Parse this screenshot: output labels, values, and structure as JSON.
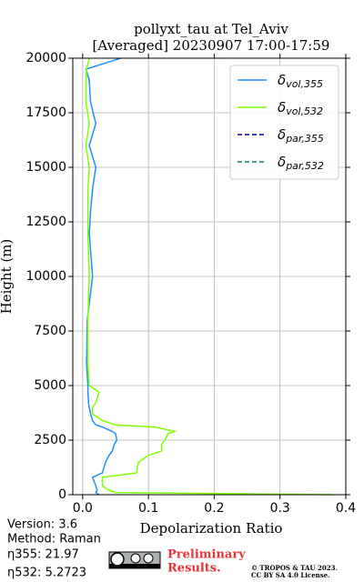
{
  "chart_data": {
    "type": "line",
    "title": "pollyxt_tau at Tel_Aviv",
    "subtitle": "[Averaged] 20230907 17:00-17:59",
    "xlabel": "Depolarization Ratio",
    "ylabel": "Height (m)",
    "y": [
      0,
      100,
      200,
      400,
      800,
      1000,
      1500,
      1800,
      2000,
      2300,
      2500,
      2800,
      2900,
      3100,
      3200,
      3400,
      3700,
      4000,
      4200,
      4700,
      5000,
      6000,
      8000,
      10000,
      12000,
      13000,
      14000,
      15000,
      16000,
      17000,
      18000,
      19000,
      19500,
      20000
    ],
    "series": [
      {
        "name": "δvol,355",
        "color": "#1e90ff",
        "dash": false,
        "values": [
          0.025,
          0.02,
          0.022,
          0.02,
          0.015,
          0.03,
          0.035,
          0.04,
          0.045,
          0.048,
          0.052,
          0.05,
          0.045,
          0.03,
          0.02,
          0.015,
          0.012,
          0.01,
          0.009,
          0.008,
          0.008,
          0.006,
          0.007,
          0.015,
          0.01,
          0.012,
          0.015,
          0.02,
          0.01,
          0.02,
          0.012,
          0.01,
          0.005,
          0.058
        ]
      },
      {
        "name": "δvol,532",
        "color": "#7fff00",
        "dash": false,
        "values": [
          0.38,
          0.05,
          0.04,
          0.03,
          0.03,
          0.082,
          0.085,
          0.1,
          0.12,
          0.12,
          0.125,
          0.13,
          0.14,
          0.11,
          0.05,
          0.03,
          0.015,
          0.015,
          0.02,
          0.025,
          0.01,
          0.008,
          0.008,
          0.01,
          0.008,
          0.008,
          0.008,
          0.01,
          0.005,
          0.01,
          0.005,
          0.005,
          0.006,
          0.01
        ]
      },
      {
        "name": "δpar,355",
        "color": "#0000aa",
        "dash": true,
        "values": [
          null,
          null,
          null,
          null,
          null,
          null,
          null,
          null,
          null,
          null,
          null,
          null,
          null,
          null,
          null,
          null,
          null,
          null,
          null,
          null,
          null,
          null,
          null,
          null,
          null,
          null,
          null,
          null,
          null,
          null,
          null,
          null,
          null,
          null
        ]
      },
      {
        "name": "δpar,532",
        "color": "#008040",
        "dash": true,
        "values": [
          null,
          null,
          null,
          null,
          null,
          null,
          null,
          null,
          null,
          null,
          null,
          null,
          null,
          null,
          null,
          null,
          null,
          null,
          null,
          null,
          null,
          null,
          null,
          null,
          null,
          null,
          null,
          null,
          null,
          null,
          null,
          null,
          null,
          null
        ]
      }
    ],
    "xlim": [
      -0.015,
      0.4
    ],
    "xticks": [
      {
        "value": 0,
        "label": "0.0"
      },
      0.1,
      0.2,
      0.3,
      0.4
    ],
    "ylim": [
      0,
      20000
    ],
    "yticks": [
      0,
      2500,
      5000,
      7500,
      10000,
      12500,
      15000,
      17500,
      20000
    ],
    "grid": true,
    "legend": "upper right",
    "annotations": [
      "Version: 3.6",
      "Method: Raman",
      "η355:  21.97",
      "η532: 5.2723",
      "Preliminary",
      "Results.",
      "© TROPOS & TAU 2023.",
      "CC BY SA 4.0 License."
    ]
  }
}
